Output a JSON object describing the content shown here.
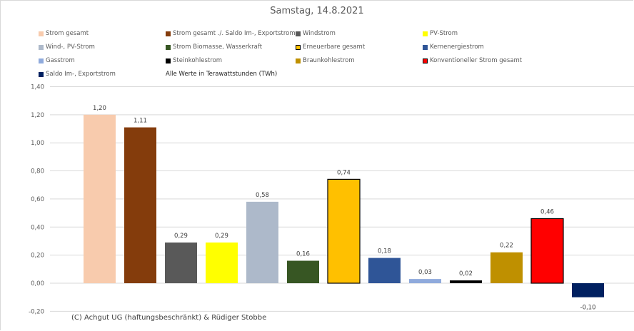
{
  "title": "Samstag, 14.8.2021",
  "note": "Alle Werte in Terawattstunden (TWh)",
  "footer": "(C) Achgut UG (haftungsbeschränkt) & Rüdiger Stobbe",
  "legend": [
    {
      "label": "Strom gesamt",
      "color": "#f8cbad"
    },
    {
      "label": "Strom gesamt ./. Saldo Im-, Exportstrom",
      "color": "#843c0c"
    },
    {
      "label": "Windstrom",
      "color": "#595959"
    },
    {
      "label": "PV-Strom",
      "color": "#ffff00"
    },
    {
      "label": "Wind-, PV-Strom",
      "color": "#adb9ca"
    },
    {
      "label": "Strom Biomasse, Wasserkraft",
      "color": "#375623"
    },
    {
      "label": "Erneuerbare gesamt",
      "color": "#ffc000",
      "outline": "#000000"
    },
    {
      "label": "Kernenergiestrom",
      "color": "#2f5597"
    },
    {
      "label": "Gasstrom",
      "color": "#8faadc"
    },
    {
      "label": "Steinkohlestrom",
      "color": "#000000"
    },
    {
      "label": "Braunkohlestrom",
      "color": "#bf9000"
    },
    {
      "label": "Konventioneller Strom gesamt",
      "color": "#ff0000",
      "outline": "#000000"
    },
    {
      "label": "Saldo Im-, Exportstrom",
      "color": "#002060"
    }
  ],
  "chart_data": {
    "type": "bar",
    "title": "Samstag, 14.8.2021",
    "xlabel": "",
    "ylabel": "",
    "ylim": [
      -0.2,
      1.4
    ],
    "yticks": [
      -0.2,
      0.0,
      0.2,
      0.4,
      0.6,
      0.8,
      1.0,
      1.2,
      1.4
    ],
    "ytick_labels": [
      "-0,20",
      "0,00",
      "0,20",
      "0,40",
      "0,60",
      "0,80",
      "1,00",
      "1,20",
      "1,40"
    ],
    "grid": true,
    "legend_position": "top",
    "categories": [
      "Strom gesamt",
      "Strom gesamt ./. Saldo Im-, Exportstrom",
      "Windstrom",
      "PV-Strom",
      "Wind-, PV-Strom",
      "Strom Biomasse, Wasserkraft",
      "Erneuerbare gesamt",
      "Kernenergiestrom",
      "Gasstrom",
      "Steinkohlestrom",
      "Braunkohlestrom",
      "Konventioneller Strom gesamt",
      "Saldo Im-, Exportstrom"
    ],
    "values": [
      1.2,
      1.11,
      0.29,
      0.29,
      0.58,
      0.16,
      0.74,
      0.18,
      0.03,
      0.02,
      0.22,
      0.46,
      -0.1
    ],
    "value_labels": [
      "1,20",
      "1,11",
      "0,29",
      "0,29",
      "0,58",
      "0,16",
      "0,74",
      "0,18",
      "0,03",
      "0,02",
      "0,22",
      "0,46",
      "-0,10"
    ]
  }
}
